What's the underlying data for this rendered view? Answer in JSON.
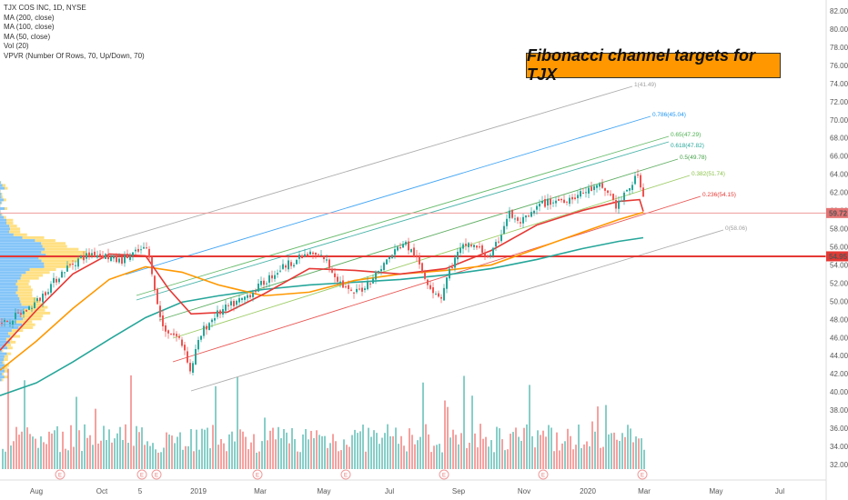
{
  "legend": {
    "symbol": "TJX COS INC, 1D, NYSE",
    "ma200": "MA (200, close)",
    "ma100": "MA (100, close)",
    "ma50": "MA (50, close)",
    "vol": "Vol (20)",
    "vpvr": "VPVR (Number Of Rows, 70, Up/Down, 70)"
  },
  "annotation_title": "Fibonacci channel targets for TJX",
  "chart_data": {
    "type": "line",
    "y_axis": {
      "ticks": [
        "82.00",
        "80.00",
        "78.00",
        "76.00",
        "74.00",
        "72.00",
        "70.00",
        "68.00",
        "66.00",
        "64.00",
        "62.00",
        "60.00",
        "58.00",
        "56.00",
        "54.00",
        "52.00",
        "50.00",
        "48.00",
        "46.00",
        "44.00",
        "42.00",
        "40.00",
        "38.00",
        "36.00",
        "34.00",
        "32.00"
      ],
      "ylim": [
        31.5,
        82.6
      ]
    },
    "x_axis": {
      "ticks": [
        "Aug",
        "Oct",
        "5",
        "2019",
        "Mar",
        "May",
        "Jul",
        "Sep",
        "Nov",
        "2020",
        "Mar",
        "May",
        "Jul"
      ]
    },
    "price_labels": [
      {
        "value": 59.72,
        "text": "59.72",
        "color": "#e57373"
      },
      {
        "value": 54.95,
        "text": "54.95",
        "color": "#e53935"
      }
    ],
    "horizontal_lines": [
      {
        "value": 54.95,
        "color": "#e53935"
      },
      {
        "value": 59.72,
        "color": "#ef9a9a"
      }
    ],
    "fib_levels": [
      {
        "label": "1(41.49)",
        "color": "#9e9e9e"
      },
      {
        "label": "0.786(45.04)",
        "color": "#2196f3"
      },
      {
        "label": "0.65(47.29)",
        "color": "#4caf50"
      },
      {
        "label": "0.618(47.82)",
        "color": "#26a69a"
      },
      {
        "label": "0.5(49.78)",
        "color": "#43a047"
      },
      {
        "label": "0.382(51.74)",
        "color": "#8bc34a"
      },
      {
        "label": "0.236(54.15)",
        "color": "#e53935"
      },
      {
        "label": "0(58.06)",
        "color": "#9e9e9e"
      }
    ],
    "price_series": [
      {
        "x": 0,
        "y": 47.5
      },
      {
        "x": 14,
        "y": 48.2
      },
      {
        "x": 28,
        "y": 49.0
      },
      {
        "x": 42,
        "y": 50.2
      },
      {
        "x": 55,
        "y": 51.8
      },
      {
        "x": 70,
        "y": 53.5
      },
      {
        "x": 85,
        "y": 54.6
      },
      {
        "x": 100,
        "y": 55.3
      },
      {
        "x": 115,
        "y": 55.0
      },
      {
        "x": 130,
        "y": 54.4
      },
      {
        "x": 145,
        "y": 55.2
      },
      {
        "x": 160,
        "y": 55.8
      },
      {
        "x": 167,
        "y": 53.0
      },
      {
        "x": 172,
        "y": 49.5
      },
      {
        "x": 178,
        "y": 47.2
      },
      {
        "x": 186,
        "y": 46.5
      },
      {
        "x": 195,
        "y": 46.0
      },
      {
        "x": 203,
        "y": 44.5
      },
      {
        "x": 208,
        "y": 42.2
      },
      {
        "x": 214,
        "y": 44.5
      },
      {
        "x": 222,
        "y": 46.8
      },
      {
        "x": 235,
        "y": 48.4
      },
      {
        "x": 250,
        "y": 49.4
      },
      {
        "x": 265,
        "y": 50.2
      },
      {
        "x": 280,
        "y": 51.3
      },
      {
        "x": 295,
        "y": 52.6
      },
      {
        "x": 310,
        "y": 53.8
      },
      {
        "x": 325,
        "y": 54.6
      },
      {
        "x": 340,
        "y": 55.2
      },
      {
        "x": 355,
        "y": 54.8
      },
      {
        "x": 365,
        "y": 53.2
      },
      {
        "x": 375,
        "y": 51.8
      },
      {
        "x": 385,
        "y": 50.8
      },
      {
        "x": 395,
        "y": 51.2
      },
      {
        "x": 405,
        "y": 52.2
      },
      {
        "x": 420,
        "y": 54.0
      },
      {
        "x": 432,
        "y": 55.4
      },
      {
        "x": 443,
        "y": 56.5
      },
      {
        "x": 455,
        "y": 55.0
      },
      {
        "x": 465,
        "y": 52.8
      },
      {
        "x": 475,
        "y": 51.2
      },
      {
        "x": 484,
        "y": 50.5
      },
      {
        "x": 492,
        "y": 53.2
      },
      {
        "x": 502,
        "y": 55.2
      },
      {
        "x": 512,
        "y": 56.4
      },
      {
        "x": 525,
        "y": 55.8
      },
      {
        "x": 538,
        "y": 54.8
      },
      {
        "x": 548,
        "y": 57.0
      },
      {
        "x": 558,
        "y": 59.8
      },
      {
        "x": 568,
        "y": 58.6
      },
      {
        "x": 580,
        "y": 59.2
      },
      {
        "x": 592,
        "y": 60.6
      },
      {
        "x": 605,
        "y": 61.0
      },
      {
        "x": 618,
        "y": 61.2
      },
      {
        "x": 632,
        "y": 61.6
      },
      {
        "x": 645,
        "y": 62.2
      },
      {
        "x": 658,
        "y": 62.6
      },
      {
        "x": 668,
        "y": 62.0
      },
      {
        "x": 676,
        "y": 60.5
      },
      {
        "x": 684,
        "y": 61.4
      },
      {
        "x": 692,
        "y": 62.8
      },
      {
        "x": 700,
        "y": 63.8
      },
      {
        "x": 705,
        "y": 62.4
      },
      {
        "x": 708,
        "y": 59.72
      }
    ],
    "series": [
      {
        "name": "MA (200, close)",
        "color": "#26a69a",
        "values": [
          {
            "x": 0,
            "y": 39.6
          },
          {
            "x": 40,
            "y": 41.0
          },
          {
            "x": 80,
            "y": 43.3
          },
          {
            "x": 120,
            "y": 45.8
          },
          {
            "x": 160,
            "y": 48.2
          },
          {
            "x": 200,
            "y": 49.9
          },
          {
            "x": 240,
            "y": 50.6
          },
          {
            "x": 290,
            "y": 51.3
          },
          {
            "x": 340,
            "y": 51.8
          },
          {
            "x": 390,
            "y": 52.1
          },
          {
            "x": 440,
            "y": 52.4
          },
          {
            "x": 490,
            "y": 52.9
          },
          {
            "x": 540,
            "y": 53.6
          },
          {
            "x": 590,
            "y": 54.6
          },
          {
            "x": 640,
            "y": 55.8
          },
          {
            "x": 680,
            "y": 56.6
          },
          {
            "x": 707,
            "y": 57.0
          }
        ]
      },
      {
        "name": "MA (100, close)",
        "color": "#ff9800",
        "values": [
          {
            "x": 0,
            "y": 42.4
          },
          {
            "x": 40,
            "y": 45.6
          },
          {
            "x": 80,
            "y": 49.2
          },
          {
            "x": 120,
            "y": 52.4
          },
          {
            "x": 160,
            "y": 53.8
          },
          {
            "x": 200,
            "y": 53.2
          },
          {
            "x": 240,
            "y": 51.8
          },
          {
            "x": 290,
            "y": 50.6
          },
          {
            "x": 340,
            "y": 51.0
          },
          {
            "x": 390,
            "y": 52.3
          },
          {
            "x": 440,
            "y": 53.0
          },
          {
            "x": 490,
            "y": 53.4
          },
          {
            "x": 540,
            "y": 54.0
          },
          {
            "x": 590,
            "y": 55.8
          },
          {
            "x": 640,
            "y": 57.6
          },
          {
            "x": 680,
            "y": 59.0
          },
          {
            "x": 707,
            "y": 59.8
          }
        ]
      },
      {
        "name": "MA (50, close)",
        "color": "#e53935",
        "values": [
          {
            "x": 0,
            "y": 44.6
          },
          {
            "x": 40,
            "y": 49.0
          },
          {
            "x": 80,
            "y": 53.0
          },
          {
            "x": 120,
            "y": 55.2
          },
          {
            "x": 160,
            "y": 55.0
          },
          {
            "x": 185,
            "y": 51.4
          },
          {
            "x": 210,
            "y": 48.6
          },
          {
            "x": 250,
            "y": 48.8
          },
          {
            "x": 290,
            "y": 50.8
          },
          {
            "x": 340,
            "y": 53.6
          },
          {
            "x": 390,
            "y": 53.4
          },
          {
            "x": 440,
            "y": 53.0
          },
          {
            "x": 490,
            "y": 53.6
          },
          {
            "x": 540,
            "y": 55.6
          },
          {
            "x": 590,
            "y": 58.4
          },
          {
            "x": 640,
            "y": 60.0
          },
          {
            "x": 680,
            "y": 61.0
          },
          {
            "x": 703,
            "y": 61.2
          },
          {
            "x": 707,
            "y": 59.9
          }
        ]
      }
    ]
  }
}
